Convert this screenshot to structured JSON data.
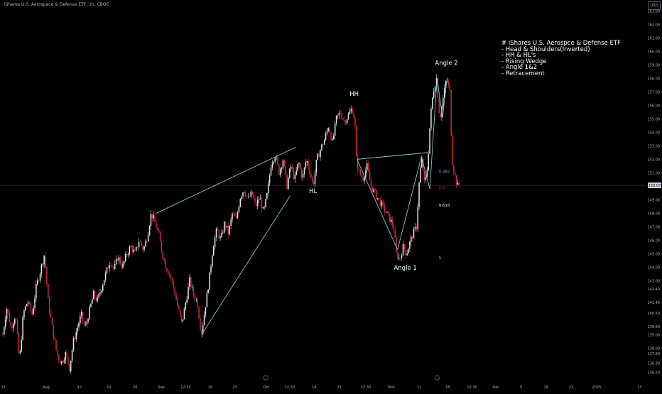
{
  "header": {
    "symbol_title": "iShares U.S. Aerospace & Defense ETF, 1h, CBOE",
    "currency": "USD"
  },
  "note": {
    "lines": [
      "# iShares U.S. Aerospce & Defense ETF",
      "- Head & Shoulders(Inverted)",
      "- HH & HL's",
      "- Rising Wedge",
      "- Angle 1&2",
      "- Retracement"
    ]
  },
  "colors": {
    "background": "#000000",
    "up_candle": "#e6e6e6",
    "down_candle": "#d9263a",
    "trendline": "#7fc8d6",
    "fib_382": "#5aa0d6",
    "fib_5": "#d9263a",
    "fib_618": "#e6e6e6",
    "price_line": "#3a3a3a"
  },
  "chart_data": {
    "type": "candlestick",
    "title": "iShares U.S. Aerospace & Defense ETF, 1h, CBOE",
    "ylim": [
      135.5,
      163.7
    ],
    "last_price": 150.07,
    "y_ticks": [
      163.0,
      162.0,
      161.0,
      160.0,
      159.0,
      158.0,
      157.0,
      156.0,
      155.0,
      154.0,
      153.0,
      152.0,
      151.0,
      150.0,
      149.0,
      148.0,
      147.0,
      146.0,
      145.0,
      144.0,
      143.0,
      142.4,
      141.4,
      140.6,
      139.6,
      139.0,
      138.0,
      137.6,
      136.9,
      136.2
    ],
    "x_ticks": [
      {
        "label": "22",
        "t": 0.6
      },
      {
        "label": "Aug",
        "t": 8.3
      },
      {
        "label": "12",
        "t": 14.3
      },
      {
        "label": "19",
        "t": 19.6
      },
      {
        "label": "26",
        "t": 24.3
      },
      {
        "label": "Sep",
        "t": 29.0
      },
      {
        "label": "12:30",
        "t": 33.4
      },
      {
        "label": "16",
        "t": 37.8
      },
      {
        "label": "23",
        "t": 42.2
      },
      {
        "label": "Oct",
        "t": 47.9
      },
      {
        "label": "12:30",
        "t": 52.1
      },
      {
        "label": "14",
        "t": 56.5
      },
      {
        "label": "21",
        "t": 61.0
      },
      {
        "label": "12:30",
        "t": 65.8
      },
      {
        "label": "Nov",
        "t": 70.4
      },
      {
        "label": "11",
        "t": 75.4
      },
      {
        "label": "18",
        "t": 80.5
      },
      {
        "label": "12:30",
        "t": 84.9
      },
      {
        "label": "Dec",
        "t": 89.2
      },
      {
        "label": "9",
        "t": 93.7
      },
      {
        "label": "16",
        "t": 98.2
      },
      {
        "label": "23",
        "t": 102.7
      },
      {
        "label": "2025",
        "t": 107.3
      },
      {
        "label": "13",
        "t": 115.0
      }
    ],
    "price_path": [
      [
        0.5,
        139.0
      ],
      [
        1.2,
        141.0
      ],
      [
        2.0,
        139.5
      ],
      [
        2.8,
        140.5
      ],
      [
        3.5,
        137.0
      ],
      [
        4.2,
        140.6
      ],
      [
        5.0,
        141.5
      ],
      [
        5.8,
        140.5
      ],
      [
        6.5,
        142.5
      ],
      [
        7.3,
        143.8
      ],
      [
        8.0,
        145.0
      ],
      [
        8.7,
        141.3
      ],
      [
        9.4,
        139.5
      ],
      [
        10.2,
        137.6
      ],
      [
        11.0,
        136.9
      ],
      [
        11.8,
        137.6
      ],
      [
        12.5,
        136.5
      ],
      [
        13.2,
        138.5
      ],
      [
        13.9,
        139.5
      ],
      [
        14.6,
        140.5
      ],
      [
        15.3,
        139.5
      ],
      [
        16.0,
        140.6
      ],
      [
        16.8,
        142.0
      ],
      [
        17.5,
        141.5
      ],
      [
        18.2,
        142.4
      ],
      [
        19.0,
        143.5
      ],
      [
        19.8,
        144.5
      ],
      [
        20.5,
        143.8
      ],
      [
        21.2,
        144.8
      ],
      [
        22.0,
        144.0
      ],
      [
        22.8,
        145.0
      ],
      [
        23.5,
        145.5
      ],
      [
        24.3,
        145.0
      ],
      [
        25.0,
        146.0
      ],
      [
        25.8,
        145.3
      ],
      [
        26.5,
        146.3
      ],
      [
        27.2,
        148.0
      ],
      [
        27.8,
        147.4
      ],
      [
        28.5,
        146.5
      ],
      [
        29.2,
        145.0
      ],
      [
        29.9,
        144.0
      ],
      [
        30.6,
        143.4
      ],
      [
        31.3,
        142.4
      ],
      [
        32.0,
        141.0
      ],
      [
        32.7,
        139.8
      ],
      [
        33.4,
        141.4
      ],
      [
        34.1,
        143.0
      ],
      [
        34.8,
        142.0
      ],
      [
        35.5,
        141.4
      ],
      [
        36.2,
        139.0
      ],
      [
        36.9,
        141.0
      ],
      [
        37.6,
        143.0
      ],
      [
        38.3,
        145.5
      ],
      [
        39.0,
        146.8
      ],
      [
        39.7,
        146.0
      ],
      [
        40.4,
        147.3
      ],
      [
        41.1,
        146.5
      ],
      [
        41.8,
        148.0
      ],
      [
        42.5,
        147.5
      ],
      [
        43.2,
        149.2
      ],
      [
        43.9,
        149.8
      ],
      [
        44.6,
        149.0
      ],
      [
        45.3,
        149.5
      ],
      [
        46.0,
        148.5
      ],
      [
        46.7,
        149.2
      ],
      [
        47.4,
        148.0
      ],
      [
        48.1,
        149.5
      ],
      [
        48.8,
        151.8
      ],
      [
        49.5,
        152.3
      ],
      [
        50.2,
        151.0
      ],
      [
        50.9,
        152.0
      ],
      [
        51.6,
        150.0
      ],
      [
        52.3,
        151.5
      ],
      [
        53.0,
        150.5
      ],
      [
        53.7,
        151.8
      ],
      [
        54.4,
        150.6
      ],
      [
        55.1,
        152.0
      ],
      [
        55.8,
        151.0
      ],
      [
        56.3,
        150.0
      ],
      [
        57.0,
        152.0
      ],
      [
        57.7,
        152.8
      ],
      [
        58.4,
        153.5
      ],
      [
        59.1,
        154.5
      ],
      [
        59.8,
        153.2
      ],
      [
        60.5,
        155.0
      ],
      [
        61.2,
        155.5
      ],
      [
        61.9,
        154.8
      ],
      [
        62.6,
        155.2
      ],
      [
        63.3,
        155.8
      ],
      [
        63.8,
        154.9
      ],
      [
        64.1,
        152.0
      ],
      [
        64.6,
        151.0
      ],
      [
        65.3,
        150.6
      ],
      [
        66.0,
        151.5
      ],
      [
        66.7,
        150.0
      ],
      [
        67.4,
        149.5
      ],
      [
        68.1,
        149.0
      ],
      [
        68.8,
        148.5
      ],
      [
        69.5,
        148.0
      ],
      [
        70.2,
        147.5
      ],
      [
        70.8,
        147.0
      ],
      [
        71.3,
        145.0
      ],
      [
        71.9,
        144.6
      ],
      [
        72.5,
        145.5
      ],
      [
        73.1,
        145.0
      ],
      [
        73.7,
        145.8
      ],
      [
        74.3,
        146.5
      ],
      [
        74.9,
        147.0
      ],
      [
        75.5,
        151.0
      ],
      [
        75.9,
        152.0
      ],
      [
        76.4,
        150.0
      ],
      [
        76.9,
        151.5
      ],
      [
        77.4,
        155.0
      ],
      [
        77.9,
        157.0
      ],
      [
        78.5,
        158.0
      ],
      [
        79.1,
        155.0
      ],
      [
        79.7,
        156.5
      ],
      [
        80.3,
        158.0
      ],
      [
        80.9,
        157.0
      ],
      [
        81.3,
        152.0
      ],
      [
        81.8,
        150.8
      ],
      [
        82.3,
        150.0
      ],
      [
        82.8,
        150.2
      ]
    ],
    "annotations": [
      {
        "text": "HH",
        "t": 63.7,
        "y": 156.7
      },
      {
        "text": "HL",
        "t": 56.3,
        "y": 149.5
      },
      {
        "text": "Angle 1",
        "t": 72.9,
        "y": 143.8
      },
      {
        "text": "Angle 2",
        "t": 80.3,
        "y": 159.0
      }
    ],
    "trendlines": [
      {
        "from": [
          28.1,
          148.0
        ],
        "to": [
          53.2,
          152.9
        ]
      },
      {
        "from": [
          36.4,
          139.1
        ],
        "to": [
          52.2,
          149.3
        ]
      },
      {
        "from": [
          64.2,
          152.0
        ],
        "to": [
          77.0,
          152.5
        ]
      },
      {
        "from": [
          64.2,
          152.0
        ],
        "to": [
          71.5,
          145.3
        ]
      },
      {
        "from": [
          71.5,
          145.3
        ],
        "to": [
          75.8,
          152.2
        ]
      },
      {
        "from": [
          75.8,
          152.2
        ],
        "to": [
          77.3,
          149.8
        ]
      },
      {
        "from": [
          77.3,
          149.8
        ],
        "to": [
          78.6,
          158.0
        ]
      },
      {
        "from": [
          78.6,
          158.0
        ],
        "to": [
          79.6,
          155.1
        ]
      },
      {
        "from": [
          79.6,
          155.1
        ],
        "to": [
          80.4,
          158.0
        ]
      }
    ],
    "fib_levels": [
      {
        "label": "0.382",
        "y": 151.1,
        "t": 78.9
      },
      {
        "label": "0.5",
        "y": 149.9,
        "t": 78.9
      },
      {
        "label": "0.618",
        "y": 148.6,
        "t": 78.9
      },
      {
        "label": "1",
        "y": 144.7,
        "t": 78.9
      }
    ]
  }
}
